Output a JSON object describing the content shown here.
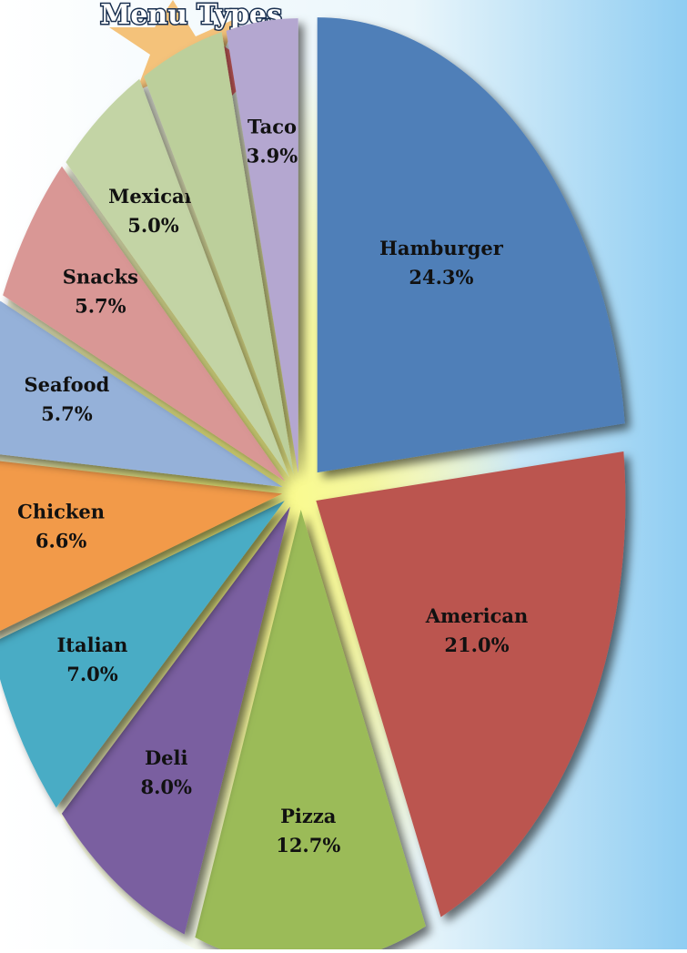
{
  "chart_data": {
    "type": "pie",
    "title": "Menu Types",
    "categories": [
      "Hamburger",
      "American",
      "Pizza",
      "Deli",
      "Italian",
      "Chicken",
      "Seafood",
      "Snacks",
      "Mexican",
      null,
      "Taco"
    ],
    "values": [
      24.3,
      21.0,
      12.7,
      8.0,
      7.0,
      6.6,
      5.7,
      5.7,
      5.0,
      4.5,
      3.9
    ],
    "value_labels": [
      "24.3%",
      "21.0%",
      "12.7%",
      "8.0%",
      "7.0%",
      "6.6%",
      "5.7%",
      "5.7%",
      "5.0%",
      null,
      "3.9%"
    ],
    "colors": [
      "#4f7fb8",
      "#bb5550",
      "#9bbb59",
      "#7a5fa0",
      "#4aacc5",
      "#f29a4a",
      "#95b1d9",
      "#d99795",
      "#c3d4a5",
      "#bccf9b",
      "#b4a7d0"
    ]
  }
}
